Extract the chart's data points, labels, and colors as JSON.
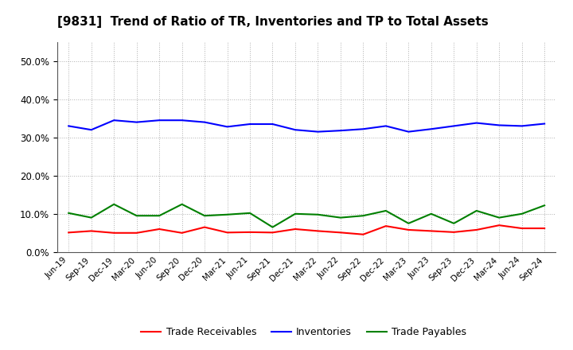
{
  "title": "[9831]  Trend of Ratio of TR, Inventories and TP to Total Assets",
  "x_labels": [
    "Jun-19",
    "Sep-19",
    "Dec-19",
    "Mar-20",
    "Jun-20",
    "Sep-20",
    "Dec-20",
    "Mar-21",
    "Jun-21",
    "Sep-21",
    "Dec-21",
    "Mar-22",
    "Jun-22",
    "Sep-22",
    "Dec-22",
    "Mar-23",
    "Jun-23",
    "Sep-23",
    "Dec-23",
    "Mar-24",
    "Jun-24",
    "Sep-24"
  ],
  "trade_receivables": [
    0.051,
    0.055,
    0.05,
    0.05,
    0.06,
    0.05,
    0.065,
    0.051,
    0.052,
    0.051,
    0.06,
    0.055,
    0.051,
    0.046,
    0.068,
    0.058,
    0.055,
    0.052,
    0.058,
    0.07,
    0.062,
    0.062
  ],
  "inventories": [
    0.33,
    0.32,
    0.345,
    0.34,
    0.345,
    0.345,
    0.34,
    0.328,
    0.335,
    0.335,
    0.32,
    0.315,
    0.318,
    0.322,
    0.33,
    0.315,
    0.322,
    0.33,
    0.338,
    0.332,
    0.33,
    0.336
  ],
  "trade_payables": [
    0.102,
    0.09,
    0.125,
    0.095,
    0.095,
    0.125,
    0.095,
    0.098,
    0.102,
    0.065,
    0.1,
    0.098,
    0.09,
    0.095,
    0.108,
    0.075,
    0.1,
    0.075,
    0.108,
    0.09,
    0.1,
    0.122
  ],
  "tr_color": "#ff0000",
  "inv_color": "#0000ff",
  "tp_color": "#008000",
  "ylim": [
    0.0,
    0.55
  ],
  "yticks": [
    0.0,
    0.1,
    0.2,
    0.3,
    0.4,
    0.5
  ],
  "background_color": "#ffffff",
  "grid_color": "#b0b0b0",
  "title_fontsize": 11,
  "legend_labels": [
    "Trade Receivables",
    "Inventories",
    "Trade Payables"
  ]
}
